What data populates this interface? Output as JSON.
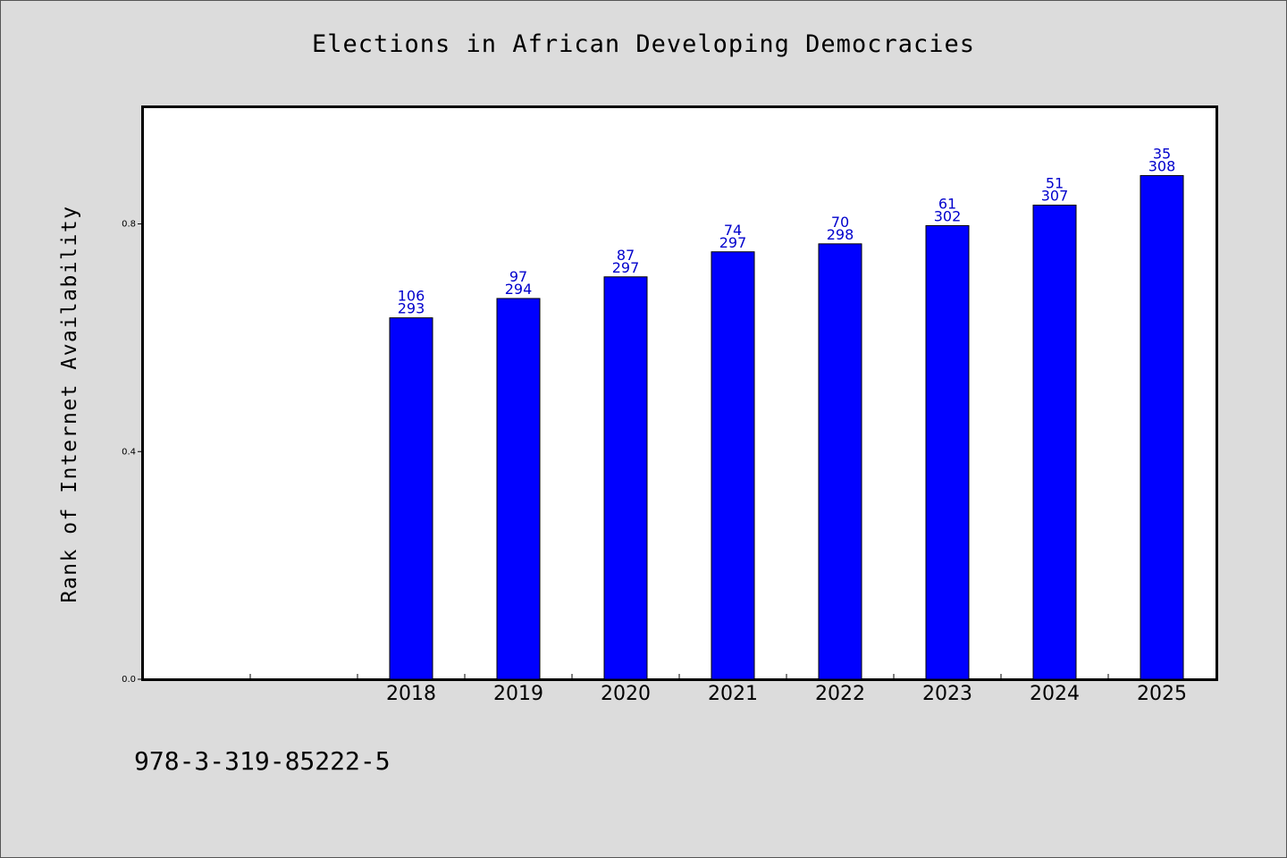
{
  "chart_data": {
    "type": "bar",
    "title": "Elections in African Developing Democracies",
    "xlabel": "",
    "ylabel": "Rank of Internet Availability",
    "categories": [
      "",
      "",
      "2018",
      "2019",
      "2020",
      "2021",
      "2022",
      "2023",
      "2024",
      "2025"
    ],
    "values": [
      null,
      null,
      0.635,
      0.669,
      0.707,
      0.751,
      0.765,
      0.797,
      0.833,
      0.885
    ],
    "labels_top": [
      "",
      "",
      "106",
      "97",
      "87",
      "74",
      "70",
      "61",
      "51",
      "35"
    ],
    "labels_bottom": [
      "",
      "",
      "293",
      "294",
      "297",
      "297",
      "298",
      "302",
      "307",
      "308"
    ],
    "yticks": [
      0.0,
      0.4,
      0.8
    ],
    "ytick_labels": [
      "0.0",
      "0.4",
      "0.8"
    ],
    "ylim": [
      0,
      1.005
    ],
    "bar_color": "#0000ff",
    "label_color": "#0000cc",
    "grid": false
  },
  "footer": {
    "isbn": "978-3-319-85222-5"
  }
}
